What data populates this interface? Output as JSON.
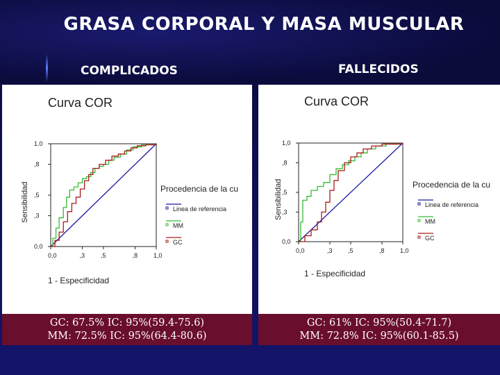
{
  "title": "GRASA CORPORAL Y MASA MUSCULAR",
  "colors": {
    "ref": "#1a1aa0",
    "mm": "#33bb33",
    "gc": "#aa1a1a",
    "caption_bg": "#6a0e2e"
  },
  "chart_data": [
    {
      "type": "line",
      "panel_label": "COMPLICADOS",
      "title": "Curva COR",
      "xlabel": "1 - Especificidad",
      "ylabel": "Sensibilidad",
      "xlim": [
        0,
        1
      ],
      "ylim": [
        0,
        1
      ],
      "x_ticks": [
        "0,0",
        ",3",
        ",5",
        ",8",
        "1,0"
      ],
      "y_ticks": [
        "0.0",
        ",3",
        ",5",
        ",8",
        "1.0"
      ],
      "legend_title": "Procedencia de la cu",
      "series": [
        {
          "name": "Linea de referencia",
          "key": "ref",
          "points": [
            [
              0,
              0
            ],
            [
              1,
              1
            ]
          ]
        },
        {
          "name": "MM",
          "key": "mm",
          "points": [
            [
              0,
              0
            ],
            [
              0.02,
              0.08
            ],
            [
              0.05,
              0.18
            ],
            [
              0.08,
              0.28
            ],
            [
              0.12,
              0.38
            ],
            [
              0.15,
              0.48
            ],
            [
              0.18,
              0.55
            ],
            [
              0.22,
              0.58
            ],
            [
              0.26,
              0.62
            ],
            [
              0.3,
              0.66
            ],
            [
              0.34,
              0.68
            ],
            [
              0.38,
              0.72
            ],
            [
              0.42,
              0.76
            ],
            [
              0.46,
              0.78
            ],
            [
              0.5,
              0.8
            ],
            [
              0.55,
              0.84
            ],
            [
              0.6,
              0.87
            ],
            [
              0.66,
              0.9
            ],
            [
              0.72,
              0.94
            ],
            [
              0.78,
              0.97
            ],
            [
              0.86,
              0.99
            ],
            [
              1,
              1
            ]
          ]
        },
        {
          "name": "GC",
          "key": "gc",
          "points": [
            [
              0,
              0
            ],
            [
              0.04,
              0.06
            ],
            [
              0.08,
              0.14
            ],
            [
              0.12,
              0.24
            ],
            [
              0.16,
              0.34
            ],
            [
              0.2,
              0.42
            ],
            [
              0.24,
              0.48
            ],
            [
              0.28,
              0.56
            ],
            [
              0.32,
              0.64
            ],
            [
              0.36,
              0.7
            ],
            [
              0.4,
              0.76
            ],
            [
              0.46,
              0.8
            ],
            [
              0.52,
              0.84
            ],
            [
              0.58,
              0.88
            ],
            [
              0.64,
              0.9
            ],
            [
              0.7,
              0.93
            ],
            [
              0.76,
              0.96
            ],
            [
              0.82,
              0.98
            ],
            [
              0.9,
              0.99
            ],
            [
              1,
              1
            ]
          ]
        }
      ],
      "caption": [
        "GC: 67.5%  IC: 95%(59.4-75.6)",
        "MM: 72.5%  IC: 95%(64.4-80.6)"
      ]
    },
    {
      "type": "line",
      "panel_label": "FALLECIDOS",
      "title": "Curva COR",
      "xlabel": "1 - Especificidad",
      "ylabel": "Sensibilidad",
      "xlim": [
        0,
        1
      ],
      "ylim": [
        0,
        1
      ],
      "x_ticks": [
        "0,0",
        ",3",
        ",5",
        ",8",
        "1,0"
      ],
      "y_ticks": [
        "0,0",
        ",3",
        ",5",
        ",8",
        "1,0"
      ],
      "legend_title": "Procedencia de la cu",
      "series": [
        {
          "name": "Linea de referencia",
          "key": "ref",
          "points": [
            [
              0,
              0
            ],
            [
              1,
              1
            ]
          ]
        },
        {
          "name": "MM",
          "key": "mm",
          "points": [
            [
              0,
              0
            ],
            [
              0.02,
              0.2
            ],
            [
              0.04,
              0.42
            ],
            [
              0.08,
              0.46
            ],
            [
              0.12,
              0.52
            ],
            [
              0.18,
              0.56
            ],
            [
              0.24,
              0.6
            ],
            [
              0.3,
              0.68
            ],
            [
              0.36,
              0.74
            ],
            [
              0.42,
              0.78
            ],
            [
              0.48,
              0.82
            ],
            [
              0.54,
              0.86
            ],
            [
              0.6,
              0.9
            ],
            [
              0.66,
              0.94
            ],
            [
              0.74,
              0.97
            ],
            [
              0.84,
              0.99
            ],
            [
              1,
              1
            ]
          ]
        },
        {
          "name": "GC",
          "key": "gc",
          "points": [
            [
              0,
              0
            ],
            [
              0.06,
              0.06
            ],
            [
              0.12,
              0.12
            ],
            [
              0.18,
              0.2
            ],
            [
              0.22,
              0.3
            ],
            [
              0.26,
              0.4
            ],
            [
              0.3,
              0.52
            ],
            [
              0.34,
              0.62
            ],
            [
              0.38,
              0.72
            ],
            [
              0.44,
              0.8
            ],
            [
              0.5,
              0.86
            ],
            [
              0.56,
              0.9
            ],
            [
              0.62,
              0.94
            ],
            [
              0.7,
              0.97
            ],
            [
              0.8,
              0.99
            ],
            [
              1,
              1
            ]
          ]
        }
      ],
      "caption": [
        "GC: 61%  IC: 95%(50.4-71.7)",
        "MM: 72.8%  IC: 95%(60.1-85.5)"
      ]
    }
  ]
}
